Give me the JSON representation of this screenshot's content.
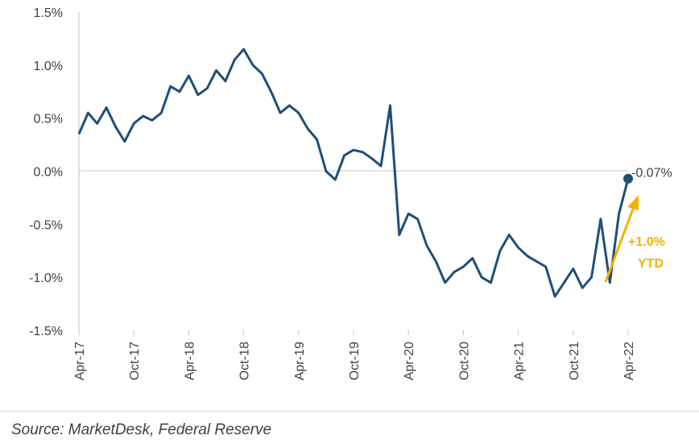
{
  "chart_data": {
    "type": "line",
    "title": "",
    "xlabel": "",
    "ylabel": "",
    "ylim": [
      -1.5,
      1.5
    ],
    "y_ticks": [
      "1.5%",
      "1.0%",
      "0.5%",
      "0.0%",
      "-0.5%",
      "-1.0%",
      "-1.5%"
    ],
    "x_ticks": [
      "Apr-17",
      "Oct-17",
      "Apr-18",
      "Oct-18",
      "Apr-19",
      "Oct-19",
      "Apr-20",
      "Oct-20",
      "Apr-21",
      "Oct-21",
      "Apr-22"
    ],
    "grid": "zero-line only",
    "legend": "none",
    "colors": {
      "series": "#1F4E79",
      "annotation": "#F0B400",
      "axis": "#bfbfbf"
    },
    "series": [
      {
        "x": [
          "Apr-17",
          "May-17",
          "Jun-17",
          "Jul-17",
          "Aug-17",
          "Sep-17",
          "Oct-17",
          "Nov-17",
          "Dec-17",
          "Jan-18",
          "Feb-18",
          "Mar-18",
          "Apr-18",
          "May-18",
          "Jun-18",
          "Jul-18",
          "Aug-18",
          "Sep-18",
          "Oct-18",
          "Nov-18",
          "Dec-18",
          "Jan-19",
          "Feb-19",
          "Mar-19",
          "Apr-19",
          "May-19",
          "Jun-19",
          "Jul-19",
          "Aug-19",
          "Sep-19",
          "Oct-19",
          "Nov-19",
          "Dec-19",
          "Jan-20",
          "Feb-20",
          "Mar-20",
          "Apr-20",
          "May-20",
          "Jun-20",
          "Jul-20",
          "Aug-20",
          "Sep-20",
          "Oct-20",
          "Nov-20",
          "Dec-20",
          "Jan-21",
          "Feb-21",
          "Mar-21",
          "Apr-21",
          "May-21",
          "Jun-21",
          "Jul-21",
          "Aug-21",
          "Sep-21",
          "Oct-21",
          "Nov-21",
          "Dec-21",
          "Jan-22",
          "Feb-22",
          "Mar-22",
          "Apr-22"
        ],
        "values": [
          0.35,
          0.55,
          0.45,
          0.6,
          0.42,
          0.28,
          0.45,
          0.52,
          0.48,
          0.55,
          0.8,
          0.75,
          0.9,
          0.72,
          0.78,
          0.95,
          0.85,
          1.05,
          1.15,
          1.0,
          0.92,
          0.75,
          0.55,
          0.62,
          0.55,
          0.4,
          0.3,
          0.0,
          -0.08,
          0.15,
          0.2,
          0.18,
          0.12,
          0.05,
          0.62,
          -0.6,
          -0.4,
          -0.45,
          -0.7,
          -0.85,
          -1.05,
          -0.95,
          -0.9,
          -0.82,
          -1.0,
          -1.05,
          -0.75,
          -0.6,
          -0.72,
          -0.8,
          -0.85,
          -0.9,
          -1.18,
          -1.05,
          -0.92,
          -1.1,
          -1.0,
          -0.45,
          -1.05,
          -0.4,
          -0.07
        ]
      }
    ],
    "annotations": {
      "end_label": "-0.07%",
      "ytd_line1": "+1.0%",
      "ytd_line2": "YTD"
    }
  },
  "source": "Source: MarketDesk, Federal Reserve"
}
